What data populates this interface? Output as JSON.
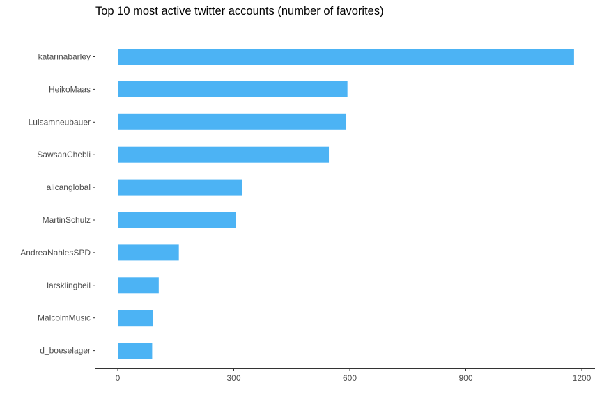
{
  "chart_data": {
    "type": "bar",
    "orientation": "horizontal",
    "title": "Top 10 most active twitter accounts (number of favorites)",
    "xlabel": "",
    "ylabel": "",
    "categories": [
      "katarinabarley",
      "HeikoMaas",
      "Luisamneubauer",
      "SawsanChebli",
      "alicanglobal",
      "MartinSchulz",
      "AndreaNahlesSPD",
      "larsklingbeil",
      "MalcolmMusic",
      "d_boeselager"
    ],
    "values": [
      1180,
      594,
      591,
      546,
      321,
      306,
      158,
      106,
      91,
      89
    ],
    "xlim": [
      0,
      1200
    ],
    "xticks": [
      "0",
      "300",
      "600",
      "900",
      "1200"
    ],
    "bar_color": "#4cb3f4",
    "grid": false,
    "legend": "none"
  }
}
